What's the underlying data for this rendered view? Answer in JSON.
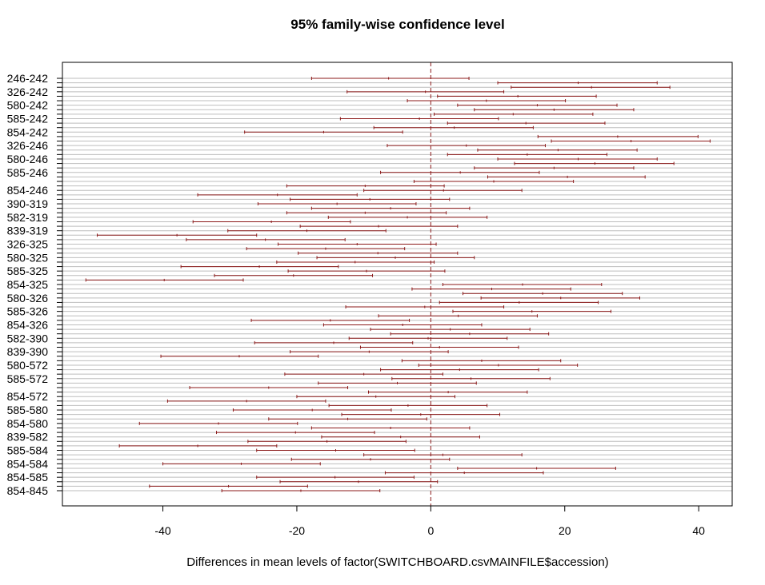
{
  "chart_data": {
    "type": "interval",
    "title": "95% family-wise confidence level",
    "xlabel": "Differences in mean levels of factor(SWITCHBOARD.csvMAINFILE$accession)",
    "ylabel": "",
    "xlim": [
      -55,
      45
    ],
    "x_ticks": [
      -40,
      -20,
      0,
      20,
      40
    ],
    "reference_line_x": 0,
    "grid": true,
    "colors": {
      "interval": "#8b1a1a",
      "reference": "#8b1a1a",
      "grid": "#bebebe",
      "axis": "#000000"
    },
    "y_tick_labels": [
      "246-242",
      "326-242",
      "580-242",
      "585-242",
      "854-242",
      "326-246",
      "580-246",
      "585-246",
      "854-246",
      "390-319",
      "582-319",
      "839-319",
      "326-325",
      "580-325",
      "585-325",
      "854-325",
      "580-326",
      "585-326",
      "854-326",
      "582-390",
      "839-390",
      "580-572",
      "585-572",
      "854-572",
      "585-580",
      "854-580",
      "839-582",
      "585-584",
      "854-584",
      "854-585",
      "854-845"
    ],
    "intervals": [
      {
        "lwr": -17.8,
        "diff": -6.3,
        "upr": 5.7
      },
      {
        "lwr": 10.0,
        "diff": 22.0,
        "upr": 33.8
      },
      {
        "lwr": 12.0,
        "diff": 24.0,
        "upr": 35.7
      },
      {
        "lwr": -12.5,
        "diff": -0.8,
        "upr": 10.9
      },
      {
        "lwr": 1.0,
        "diff": 13.0,
        "upr": 24.7
      },
      {
        "lwr": -3.5,
        "diff": 8.3,
        "upr": 20.1
      },
      {
        "lwr": 4.0,
        "diff": 15.9,
        "upr": 27.8
      },
      {
        "lwr": 6.5,
        "diff": 18.4,
        "upr": 30.3
      },
      {
        "lwr": 0.5,
        "diff": 12.3,
        "upr": 24.2
      },
      {
        "lwr": -13.5,
        "diff": -1.7,
        "upr": 10.1
      },
      {
        "lwr": 2.5,
        "diff": 14.2,
        "upr": 26.0
      },
      {
        "lwr": -8.5,
        "diff": 3.5,
        "upr": 15.3
      },
      {
        "lwr": -27.8,
        "diff": -16.0,
        "upr": -4.2
      },
      {
        "lwr": 16.0,
        "diff": 27.9,
        "upr": 39.9
      },
      {
        "lwr": 18.0,
        "diff": 29.9,
        "upr": 41.7
      },
      {
        "lwr": -6.5,
        "diff": 5.3,
        "upr": 17.1
      },
      {
        "lwr": 7.0,
        "diff": 19.0,
        "upr": 30.8
      },
      {
        "lwr": 2.5,
        "diff": 14.4,
        "upr": 26.3
      },
      {
        "lwr": 10.0,
        "diff": 22.0,
        "upr": 33.8
      },
      {
        "lwr": 12.5,
        "diff": 24.5,
        "upr": 36.3
      },
      {
        "lwr": 6.5,
        "diff": 18.4,
        "upr": 30.3
      },
      {
        "lwr": -7.5,
        "diff": 4.4,
        "upr": 16.2
      },
      {
        "lwr": 8.5,
        "diff": 20.4,
        "upr": 32.0
      },
      {
        "lwr": -2.5,
        "diff": 9.4,
        "upr": 21.3
      },
      {
        "lwr": -21.5,
        "diff": -9.8,
        "upr": 2.0
      },
      {
        "lwr": -10.0,
        "diff": 1.9,
        "upr": 13.6
      },
      {
        "lwr": -34.8,
        "diff": -22.9,
        "upr": -11.0
      },
      {
        "lwr": -21.0,
        "diff": -9.1,
        "upr": 2.8
      },
      {
        "lwr": -25.8,
        "diff": -14.0,
        "upr": -2.2
      },
      {
        "lwr": -17.8,
        "diff": -6.0,
        "upr": 5.8
      },
      {
        "lwr": -21.5,
        "diff": -9.8,
        "upr": 2.3
      },
      {
        "lwr": -15.3,
        "diff": -3.5,
        "upr": 8.4
      },
      {
        "lwr": -35.5,
        "diff": -23.8,
        "upr": -12.0
      },
      {
        "lwr": -19.5,
        "diff": -7.8,
        "upr": 4.0
      },
      {
        "lwr": -30.3,
        "diff": -18.5,
        "upr": -6.7
      },
      {
        "lwr": -49.8,
        "diff": -37.9,
        "upr": -26.0
      },
      {
        "lwr": -36.5,
        "diff": -24.7,
        "upr": -12.8
      },
      {
        "lwr": -22.8,
        "diff": -11.0,
        "upr": 0.8
      },
      {
        "lwr": -27.5,
        "diff": -15.7,
        "upr": -3.9
      },
      {
        "lwr": -19.8,
        "diff": -7.9,
        "upr": 4.0
      },
      {
        "lwr": -17.0,
        "diff": -5.3,
        "upr": 6.5
      },
      {
        "lwr": -23.0,
        "diff": -11.3,
        "upr": 0.5
      },
      {
        "lwr": -37.3,
        "diff": -25.6,
        "upr": -13.8
      },
      {
        "lwr": -21.3,
        "diff": -9.6,
        "upr": 2.1
      },
      {
        "lwr": -32.3,
        "diff": -20.5,
        "upr": -8.7
      },
      {
        "lwr": -51.5,
        "diff": -39.8,
        "upr": -28.0
      },
      {
        "lwr": 1.8,
        "diff": 13.7,
        "upr": 25.5
      },
      {
        "lwr": -2.8,
        "diff": 9.1,
        "upr": 20.9
      },
      {
        "lwr": 4.8,
        "diff": 16.7,
        "upr": 28.6
      },
      {
        "lwr": 7.5,
        "diff": 19.4,
        "upr": 31.2
      },
      {
        "lwr": 1.3,
        "diff": 13.2,
        "upr": 25.0
      },
      {
        "lwr": -12.7,
        "diff": -0.9,
        "upr": 10.9
      },
      {
        "lwr": 3.3,
        "diff": 15.1,
        "upr": 26.9
      },
      {
        "lwr": -7.8,
        "diff": 4.1,
        "upr": 15.9
      },
      {
        "lwr": -26.8,
        "diff": -15.0,
        "upr": -3.2
      },
      {
        "lwr": -16.0,
        "diff": -4.2,
        "upr": 7.6
      },
      {
        "lwr": -9.0,
        "diff": 2.9,
        "upr": 14.8
      },
      {
        "lwr": -6.0,
        "diff": 5.8,
        "upr": 17.6
      },
      {
        "lwr": -12.2,
        "diff": -0.4,
        "upr": 11.4
      },
      {
        "lwr": -26.3,
        "diff": -14.5,
        "upr": -2.7
      },
      {
        "lwr": -10.5,
        "diff": 1.3,
        "upr": 13.1
      },
      {
        "lwr": -21.0,
        "diff": -9.2,
        "upr": 2.6
      },
      {
        "lwr": -40.3,
        "diff": -28.6,
        "upr": -16.8
      },
      {
        "lwr": -4.3,
        "diff": 7.6,
        "upr": 19.4
      },
      {
        "lwr": -1.8,
        "diff": 10.1,
        "upr": 21.9
      },
      {
        "lwr": -7.5,
        "diff": 4.3,
        "upr": 16.1
      },
      {
        "lwr": -21.8,
        "diff": -10.0,
        "upr": 1.8
      },
      {
        "lwr": -5.8,
        "diff": 6.0,
        "upr": 17.8
      },
      {
        "lwr": -16.8,
        "diff": -5.0,
        "upr": 6.8
      },
      {
        "lwr": -36.0,
        "diff": -24.2,
        "upr": -12.4
      },
      {
        "lwr": -9.3,
        "diff": 2.6,
        "upr": 14.4
      },
      {
        "lwr": -20.0,
        "diff": -8.2,
        "upr": 3.6
      },
      {
        "lwr": -39.3,
        "diff": -27.5,
        "upr": -15.7
      },
      {
        "lwr": -15.2,
        "diff": -3.4,
        "upr": 8.4
      },
      {
        "lwr": -29.5,
        "diff": -17.7,
        "upr": -5.9
      },
      {
        "lwr": -13.3,
        "diff": -1.5,
        "upr": 10.3
      },
      {
        "lwr": -24.2,
        "diff": -12.4,
        "upr": -0.6
      },
      {
        "lwr": -43.5,
        "diff": -31.7,
        "upr": -19.9
      },
      {
        "lwr": -17.8,
        "diff": -6.0,
        "upr": 5.8
      },
      {
        "lwr": -32.0,
        "diff": -20.2,
        "upr": -8.4
      },
      {
        "lwr": -16.3,
        "diff": -4.5,
        "upr": 7.3
      },
      {
        "lwr": -27.3,
        "diff": -15.5,
        "upr": -3.7
      },
      {
        "lwr": -46.5,
        "diff": -34.8,
        "upr": -23.0
      },
      {
        "lwr": -26.0,
        "diff": -14.2,
        "upr": -2.4
      },
      {
        "lwr": -10.0,
        "diff": 1.8,
        "upr": 13.6
      },
      {
        "lwr": -20.8,
        "diff": -9.0,
        "upr": 2.8
      },
      {
        "lwr": -40.0,
        "diff": -28.3,
        "upr": -16.5
      },
      {
        "lwr": 4.0,
        "diff": 15.8,
        "upr": 27.6
      },
      {
        "lwr": -6.8,
        "diff": 5.0,
        "upr": 16.8
      },
      {
        "lwr": -26.0,
        "diff": -14.3,
        "upr": -2.5
      },
      {
        "lwr": -22.5,
        "diff": -10.8,
        "upr": 1.0
      },
      {
        "lwr": -42.0,
        "diff": -30.2,
        "upr": -18.4
      },
      {
        "lwr": -31.2,
        "diff": -19.4,
        "upr": -7.6
      }
    ]
  }
}
